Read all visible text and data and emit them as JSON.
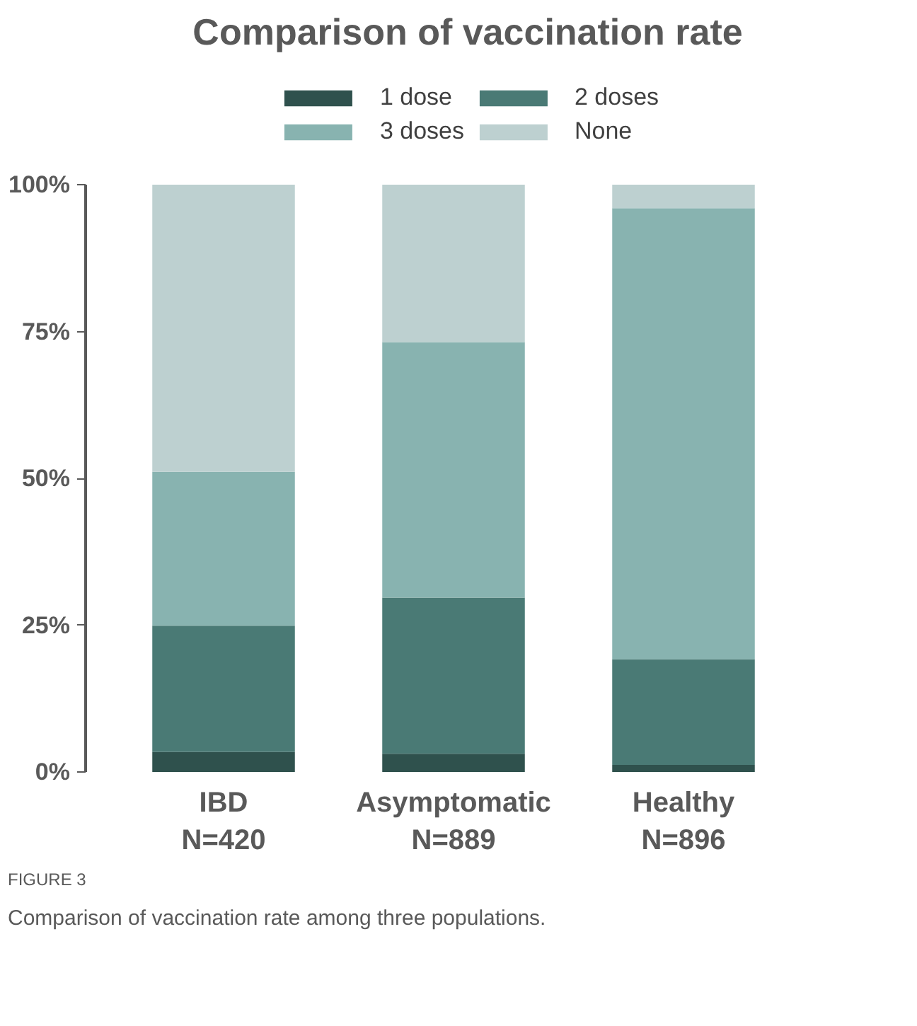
{
  "chart_data": {
    "type": "bar",
    "title": "Comparison of vaccination rate",
    "stacked": true,
    "categories": [
      "IBD\nN=420",
      "Asymptomatic\nN=889",
      "Healthy\nN=896"
    ],
    "series": [
      {
        "name": "1 dose",
        "color": "#2f514d",
        "values": [
          3.4,
          3.1,
          1.2
        ]
      },
      {
        "name": "2 doses",
        "color": "#4a7a75",
        "values": [
          21.5,
          26.6,
          18.0
        ]
      },
      {
        "name": "3 doses",
        "color": "#88b3b0",
        "values": [
          26.2,
          43.5,
          76.8
        ]
      },
      {
        "name": "None",
        "color": "#bdd0d0",
        "values": [
          48.9,
          26.8,
          4.0
        ]
      }
    ],
    "ylim": [
      0,
      100
    ],
    "yticks": [
      {
        "value": 0,
        "label": "0%"
      },
      {
        "value": 25,
        "label": "25%"
      },
      {
        "value": 50,
        "label": "50%"
      },
      {
        "value": 75,
        "label": "75%"
      },
      {
        "value": 100,
        "label": "100%"
      }
    ],
    "grid": false,
    "legend": "top",
    "annotations": [
      "FIGURE 3",
      "Comparison of vaccination rate among three populations."
    ]
  }
}
